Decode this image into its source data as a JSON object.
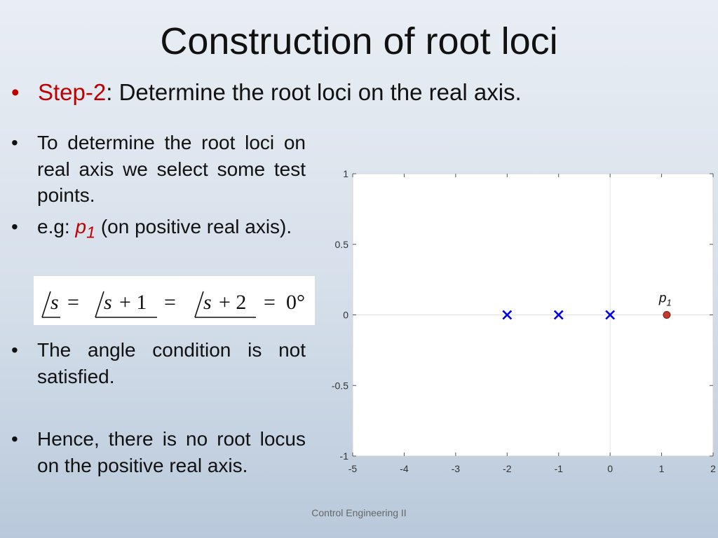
{
  "slide": {
    "title": "Construction of root loci",
    "step_label": "Step-2",
    "step_text": ": Determine the root loci on the real axis.",
    "bullets": [
      "To determine the root loci on real axis we select some test points.",
      "e.g:",
      "(on positive real axis).",
      "The angle condition is not satisfied.",
      "Hence, there is no root locus on the positive real axis."
    ],
    "point_label": "p",
    "point_sub": "1",
    "equation": "/s = /s + 1 = /s + 2 = 0°",
    "footer": "Control Engineering II"
  },
  "chart_data": {
    "type": "scatter",
    "title": "",
    "xlabel": "",
    "ylabel": "",
    "xlim": [
      -5,
      2
    ],
    "ylim": [
      -1,
      1
    ],
    "xticks": [
      -5,
      -4,
      -3,
      -2,
      -1,
      0,
      1,
      2
    ],
    "yticks": [
      -1,
      -0.5,
      0,
      0.5,
      1
    ],
    "grid": false,
    "series": [
      {
        "marker": "x",
        "color": "#0000e6",
        "points": [
          [
            -2,
            0
          ],
          [
            -1,
            0
          ],
          [
            0,
            0
          ]
        ]
      },
      {
        "marker": "o",
        "color": "#c0392b",
        "points": [
          [
            1.1,
            0
          ]
        ],
        "label": "p1"
      }
    ]
  }
}
